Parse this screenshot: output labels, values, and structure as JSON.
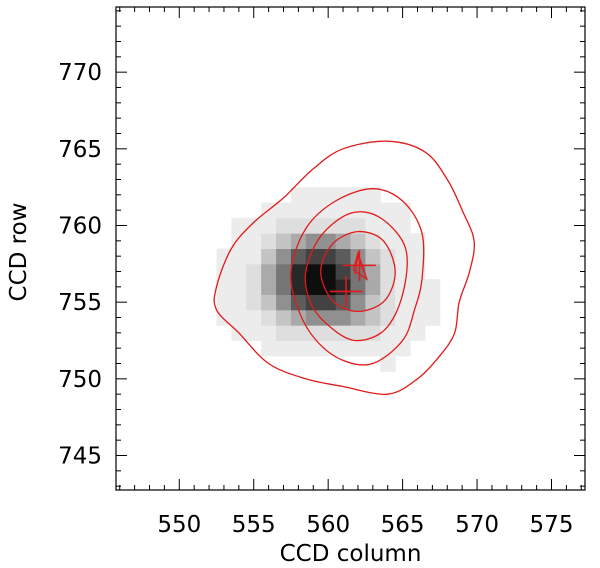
{
  "chart_data": {
    "type": "heatmap",
    "title": "",
    "xlabel": "CCD column",
    "ylabel": "CCD row",
    "xlim": [
      545.75,
      577.25
    ],
    "ylim": [
      742.75,
      774.25
    ],
    "x_ticks": [
      550,
      555,
      560,
      565,
      570,
      575
    ],
    "y_ticks": [
      745,
      750,
      755,
      760,
      765,
      770
    ],
    "x_minor_step": 1,
    "y_minor_step": 1,
    "grid": false,
    "legend": "none",
    "colormap": "gray_r",
    "pixel_grid": {
      "col_start": 552,
      "row_start": 750,
      "columns": 17,
      "rows": 15,
      "intensity": [
        [
          0,
          0,
          0,
          0,
          0,
          0,
          0,
          0,
          0,
          0,
          0,
          0,
          0,
          0,
          0,
          0,
          0
        ],
        [
          0,
          0,
          0,
          0,
          0,
          0,
          0,
          0,
          0,
          0,
          0,
          0,
          1,
          0,
          0,
          0,
          0
        ],
        [
          0,
          0,
          0,
          0,
          1,
          1,
          1,
          1,
          1,
          1,
          1,
          1,
          1,
          1,
          0,
          0,
          0
        ],
        [
          0,
          0,
          1,
          1,
          1,
          2,
          2,
          2,
          2,
          2,
          2,
          2,
          1,
          1,
          1,
          0,
          0
        ],
        [
          0,
          1,
          1,
          1,
          2,
          3,
          4,
          5,
          5,
          5,
          4,
          3,
          2,
          1,
          1,
          1,
          0
        ],
        [
          0,
          1,
          1,
          2,
          3,
          5,
          7,
          8,
          8,
          7,
          5,
          3,
          2,
          1,
          1,
          1,
          0
        ],
        [
          0,
          1,
          1,
          2,
          4,
          6,
          9,
          10,
          10,
          9,
          6,
          4,
          2,
          1,
          1,
          1,
          0
        ],
        [
          0,
          1,
          1,
          2,
          4,
          6,
          9,
          10,
          10,
          8,
          6,
          4,
          2,
          1,
          1,
          0,
          0
        ],
        [
          0,
          1,
          1,
          1,
          3,
          5,
          7,
          8,
          8,
          7,
          5,
          3,
          2,
          1,
          1,
          0,
          0
        ],
        [
          0,
          0,
          1,
          1,
          2,
          3,
          4,
          5,
          5,
          4,
          3,
          2,
          1,
          1,
          1,
          0,
          0
        ],
        [
          0,
          0,
          1,
          1,
          1,
          2,
          2,
          2,
          2,
          2,
          2,
          1,
          1,
          1,
          0,
          0,
          0
        ],
        [
          0,
          0,
          0,
          0,
          1,
          1,
          1,
          1,
          1,
          1,
          1,
          1,
          1,
          1,
          0,
          0,
          0
        ],
        [
          0,
          0,
          0,
          0,
          0,
          0,
          1,
          1,
          1,
          1,
          1,
          1,
          0,
          0,
          0,
          0,
          0
        ],
        [
          0,
          0,
          0,
          0,
          0,
          0,
          0,
          0,
          0,
          0,
          0,
          0,
          0,
          0,
          0,
          0,
          0
        ],
        [
          0,
          0,
          0,
          0,
          0,
          0,
          0,
          0,
          0,
          0,
          0,
          0,
          0,
          0,
          0,
          0,
          0
        ]
      ]
    },
    "contours": [
      {
        "level": 1,
        "points": [
          [
            552.5,
            756
          ],
          [
            553.5,
            758.5
          ],
          [
            555,
            760.2
          ],
          [
            557,
            761.8
          ],
          [
            559,
            763.7
          ],
          [
            561,
            765
          ],
          [
            564,
            765.5
          ],
          [
            566.5,
            764.8
          ],
          [
            568,
            763
          ],
          [
            569,
            761
          ],
          [
            569.8,
            759
          ],
          [
            569.5,
            757
          ],
          [
            568.8,
            755
          ],
          [
            568.5,
            753
          ],
          [
            567.5,
            751.5
          ],
          [
            566,
            750
          ],
          [
            564,
            749
          ],
          [
            561,
            749.5
          ],
          [
            558.5,
            750
          ],
          [
            556,
            751
          ],
          [
            554,
            753
          ],
          [
            552.5,
            754.5
          ]
        ]
      },
      {
        "level": 2,
        "points": [
          [
            557.5,
            757
          ],
          [
            558.5,
            759.8
          ],
          [
            560.5,
            761.6
          ],
          [
            563,
            762.4
          ],
          [
            565,
            761.6
          ],
          [
            566.3,
            759.5
          ],
          [
            566.3,
            756.5
          ],
          [
            565.8,
            754.5
          ],
          [
            565,
            752.5
          ],
          [
            563,
            751
          ],
          [
            561,
            751.2
          ],
          [
            559.2,
            752.5
          ],
          [
            558,
            754.5
          ]
        ]
      },
      {
        "level": 3,
        "points": [
          [
            558.5,
            757
          ],
          [
            559.5,
            759.3
          ],
          [
            561.5,
            760.8
          ],
          [
            563.5,
            760.5
          ],
          [
            565.2,
            758.5
          ],
          [
            565,
            755.5
          ],
          [
            563.8,
            753.2
          ],
          [
            561.8,
            752.5
          ],
          [
            560,
            753.5
          ],
          [
            558.8,
            755
          ]
        ]
      },
      {
        "level": 4,
        "points": [
          [
            559.5,
            757
          ],
          [
            560.3,
            758.8
          ],
          [
            562,
            759.6
          ],
          [
            563.7,
            759
          ],
          [
            564.5,
            757
          ],
          [
            563.8,
            755.1
          ],
          [
            562,
            754.4
          ],
          [
            560.3,
            755.1
          ]
        ]
      }
    ],
    "markers": [
      {
        "kind": "cross",
        "x": 562.1,
        "y": 757.4,
        "dx": 1.1,
        "dy": 1.0
      },
      {
        "kind": "cross",
        "x": 561.2,
        "y": 755.7,
        "dx": 1.1,
        "dy": 1.0
      }
    ],
    "centroid_track": [
      [
        562.5,
        756.8
      ],
      [
        562,
        758.2
      ],
      [
        561.7,
        757.1
      ],
      [
        562.6,
        756.5
      ],
      [
        562,
        758
      ],
      [
        561.8,
        756.8
      ]
    ],
    "contour_color": "#e21a1a",
    "marker_color": "#e21a1a"
  }
}
